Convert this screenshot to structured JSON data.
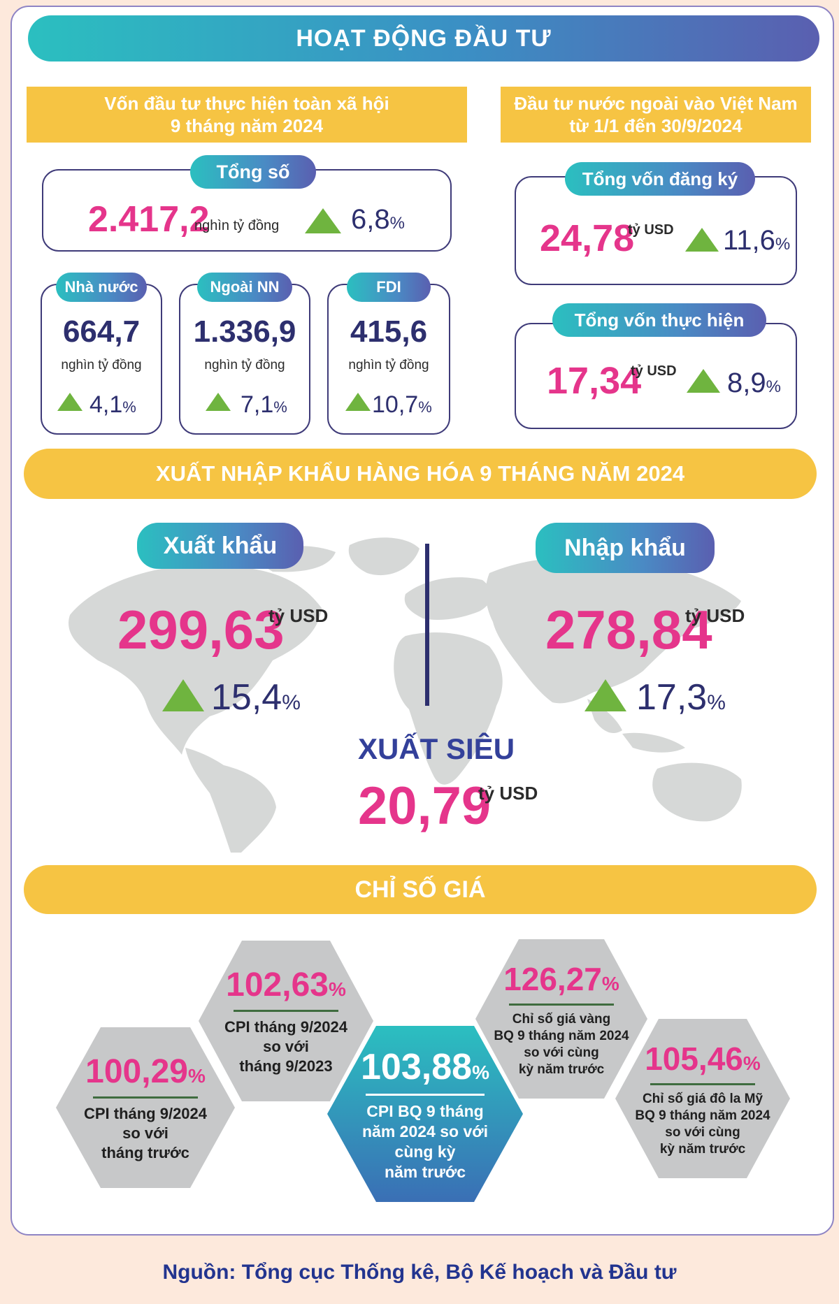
{
  "title": "HOẠT ĐỘNG ĐẦU TƯ",
  "investment": {
    "header_line1": "Vốn đầu tư thực hiện toàn xã hội",
    "header_line2": "9 tháng năm 2024",
    "total": {
      "label": "Tổng số",
      "value": "2.417,2",
      "unit": "nghìn tỷ đồng",
      "change": "6,8",
      "pct": "%"
    },
    "items": [
      {
        "label": "Nhà nước",
        "value": "664,7",
        "unit": "nghìn tỷ đồng",
        "change": "4,1",
        "pct": "%"
      },
      {
        "label": "Ngoài NN",
        "value": "1.336,9",
        "unit": "nghìn tỷ đồng",
        "change": "7,1",
        "pct": "%"
      },
      {
        "label": "FDI",
        "value": "415,6",
        "unit": "nghìn tỷ đồng",
        "change": "10,7",
        "pct": "%"
      }
    ]
  },
  "fdi": {
    "header_line1": "Đầu tư nước ngoài vào Việt Nam",
    "header_line2": "từ 1/1 đến 30/9/2024",
    "registered": {
      "label": "Tổng vốn đăng ký",
      "value": "24,78",
      "unit": "tỷ USD",
      "change": "11,6",
      "pct": "%"
    },
    "disbursed": {
      "label": "Tổng vốn thực hiện",
      "value": "17,34",
      "unit": "tỷ USD",
      "change": "8,9",
      "pct": "%"
    }
  },
  "trade": {
    "header": "XUẤT NHẬP KHẨU HÀNG HÓA 9 THÁNG NĂM 2024",
    "export": {
      "label": "Xuất khẩu",
      "value": "299,63",
      "unit": "tỷ USD",
      "change": "15,4",
      "pct": "%"
    },
    "import": {
      "label": "Nhập khẩu",
      "value": "278,84",
      "unit": "tỷ USD",
      "change": "17,3",
      "pct": "%"
    },
    "surplus": {
      "label": "XUẤT SIÊU",
      "value": "20,79",
      "unit": "tỷ USD"
    }
  },
  "prices": {
    "header": "CHỈ SỐ GIÁ",
    "hexes": [
      {
        "value": "100,29",
        "pct": "%",
        "line1": "CPI tháng 9/2024",
        "line2": "so với",
        "line3": "tháng trước",
        "line4": ""
      },
      {
        "value": "102,63",
        "pct": "%",
        "line1": "CPI tháng 9/2024",
        "line2": "so với",
        "line3": "tháng 9/2023",
        "line4": ""
      },
      {
        "value": "103,88",
        "pct": "%",
        "line1": "CPI BQ 9 tháng",
        "line2": "năm 2024 so với",
        "line3": "cùng kỳ",
        "line4": "năm trước"
      },
      {
        "value": "126,27",
        "pct": "%",
        "line1": "Chỉ số giá vàng",
        "line2": "BQ 9 tháng năm 2024",
        "line3": "so với cùng",
        "line4": "kỳ năm trước"
      },
      {
        "value": "105,46",
        "pct": "%",
        "line1": "Chỉ số giá đô la Mỹ",
        "line2": "BQ 9 tháng năm 2024",
        "line3": "so với cùng",
        "line4": "kỳ năm trước"
      }
    ]
  },
  "footer": "Nguồn: Tổng cục Thống kê, Bộ Kế hoạch và Đầu tư",
  "colors": {
    "pink": "#e5358b",
    "navy": "#2d2f6e",
    "yellow": "#f6c443",
    "green": "#6fb43f",
    "teal": "#2bbfc0"
  }
}
